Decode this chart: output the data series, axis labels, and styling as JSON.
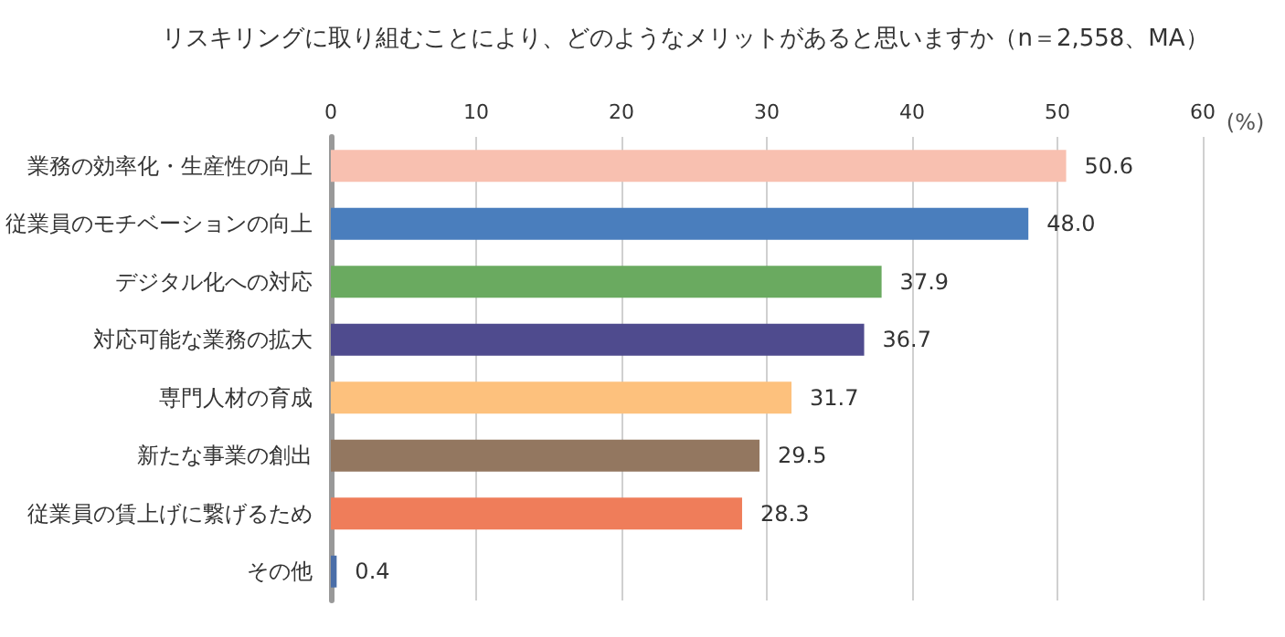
{
  "chart_data": {
    "type": "bar",
    "orientation": "horizontal",
    "title": "リスキリングに取り組むことにより、どのようなメリットがあると思いますか（n＝2,558、MA）",
    "xlabel": "(%)",
    "categories": [
      "業務の効率化・生産性の向上",
      "従業員のモチベーションの向上",
      "デジタル化への対応",
      "対応可能な業務の拡大",
      "専門人材の育成",
      "新たな事業の創出",
      "従業員の賃上げに繋げるため",
      "その他"
    ],
    "values": [
      50.6,
      48.0,
      37.9,
      36.7,
      31.7,
      29.5,
      28.3,
      0.4
    ],
    "colors": [
      "#f8c0b0",
      "#4a7ebd",
      "#6aaa60",
      "#4f4b8e",
      "#fdc17d",
      "#937760",
      "#ef7d5a",
      "#4a6ea8"
    ],
    "value_labels": [
      "50.6",
      "48.0",
      "37.9",
      "36.7",
      "31.7",
      "29.5",
      "28.3",
      "0.4"
    ],
    "xlim": [
      0,
      60
    ],
    "xticks": [
      0,
      10,
      20,
      30,
      40,
      50,
      60
    ],
    "grid": "x"
  }
}
